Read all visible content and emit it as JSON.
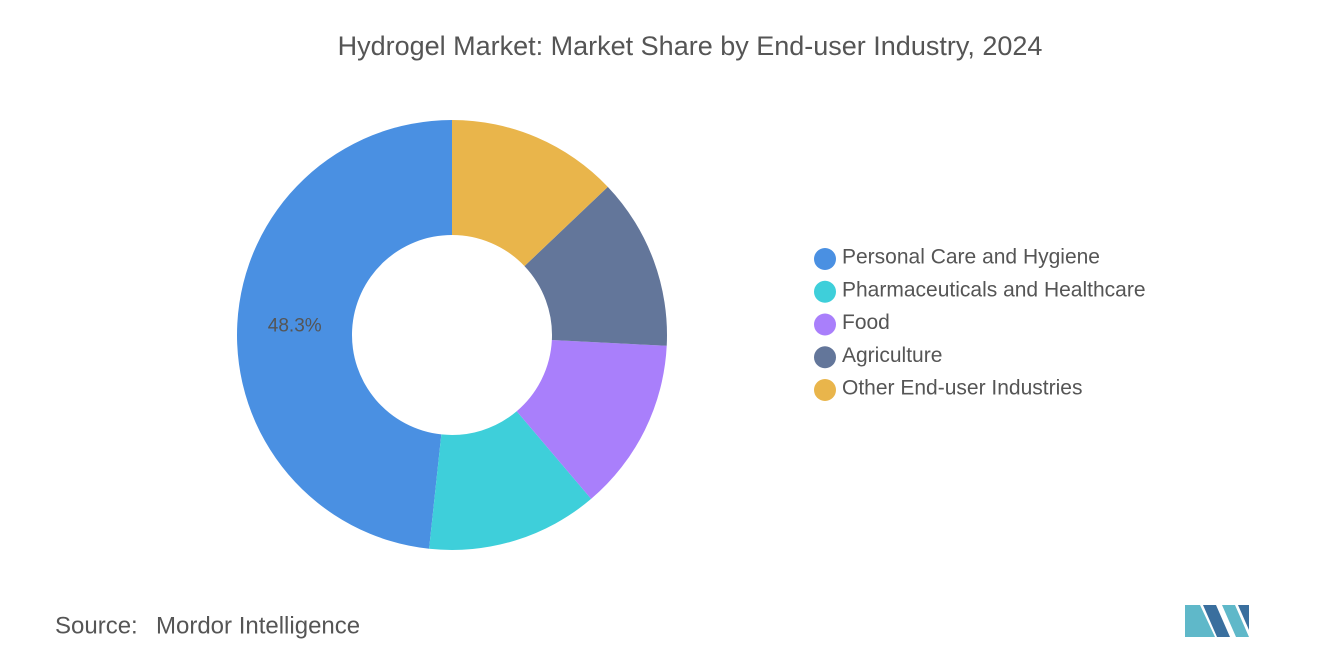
{
  "chart_data": {
    "type": "pie",
    "title": "Hydrogel Market: Market Share by End-user Industry, 2024",
    "categories": [
      "Personal Care and Hygiene",
      "Pharmaceuticals and Healthcare",
      "Food",
      "Agriculture",
      "Other End-user Industries"
    ],
    "values": [
      48.3,
      12.9,
      13.0,
      12.9,
      12.9
    ],
    "value_labels": [
      "48.3%",
      null,
      null,
      null,
      null
    ],
    "colors": [
      "#4a90e2",
      "#3ecfda",
      "#a97ffb",
      "#63769a",
      "#e9b54b"
    ],
    "donut": true,
    "legend": "right"
  },
  "source": {
    "label": "Source:",
    "text": "Mordor Intelligence"
  }
}
